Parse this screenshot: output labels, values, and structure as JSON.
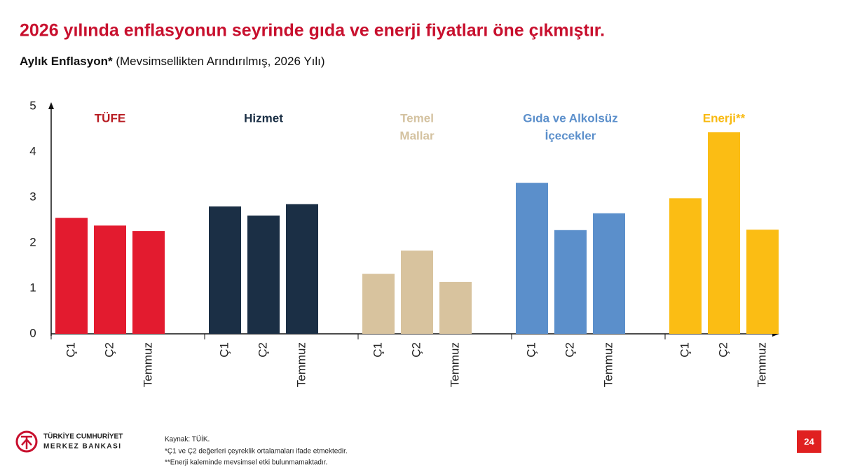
{
  "chart_data": {
    "type": "bar",
    "title": "2026 yılında enflasyonun seyrinde gıda ve enerji fiyatları öne çıkmıştır.",
    "subtitle_bold": "Aylık Enflasyon*",
    "subtitle": "(Mevsimsellikten Arındırılmış, 2026 Yılı)",
    "ylim": [
      0,
      5
    ],
    "yticks": [
      0,
      1,
      2,
      3,
      4,
      5
    ],
    "groups": [
      {
        "name": [
          "TÜFE"
        ],
        "label_color": "#b81c22",
        "color": "#e31b2f",
        "categories": [
          "Ç1",
          "Ç2",
          "Temmuz"
        ],
        "values": [
          2.55,
          2.38,
          2.26
        ]
      },
      {
        "name": [
          "Hizmet"
        ],
        "label_color": "#1b2f45",
        "color": "#1b2f45",
        "categories": [
          "Ç1",
          "Ç2",
          "Temmuz"
        ],
        "values": [
          2.8,
          2.6,
          2.85
        ]
      },
      {
        "name": [
          "Temel",
          "Mallar"
        ],
        "label_color": "#d4c2a0",
        "color": "#d8c39e",
        "categories": [
          "Ç1",
          "Ç2",
          "Temmuz"
        ],
        "values": [
          1.32,
          1.83,
          1.14
        ]
      },
      {
        "name": [
          "Gıda ve Alkolsüz",
          "İçecekler"
        ],
        "label_color": "#5b8fcb",
        "color": "#5b8fcb",
        "categories": [
          "Ç1",
          "Ç2",
          "Temmuz"
        ],
        "values": [
          3.32,
          2.28,
          2.65
        ]
      },
      {
        "name": [
          "Enerji**"
        ],
        "label_color": "#f8b90f",
        "color": "#fbbd14",
        "categories": [
          "Ç1",
          "Ç2",
          "Temmuz"
        ],
        "values": [
          2.98,
          4.43,
          2.29
        ]
      }
    ]
  },
  "footer": {
    "logo": [
      "TÜRKİYE CUMHURİYET",
      "MERKEZ BANKASI"
    ],
    "notes": [
      "Kaynak: TÜİK.",
      "*Ç1 ve Ç2 değerleri çeyreklik ortalamaları ifade etmektedir.",
      "**Enerji kaleminde mevsimsel etki bulunmamaktadır."
    ],
    "page": "24"
  }
}
